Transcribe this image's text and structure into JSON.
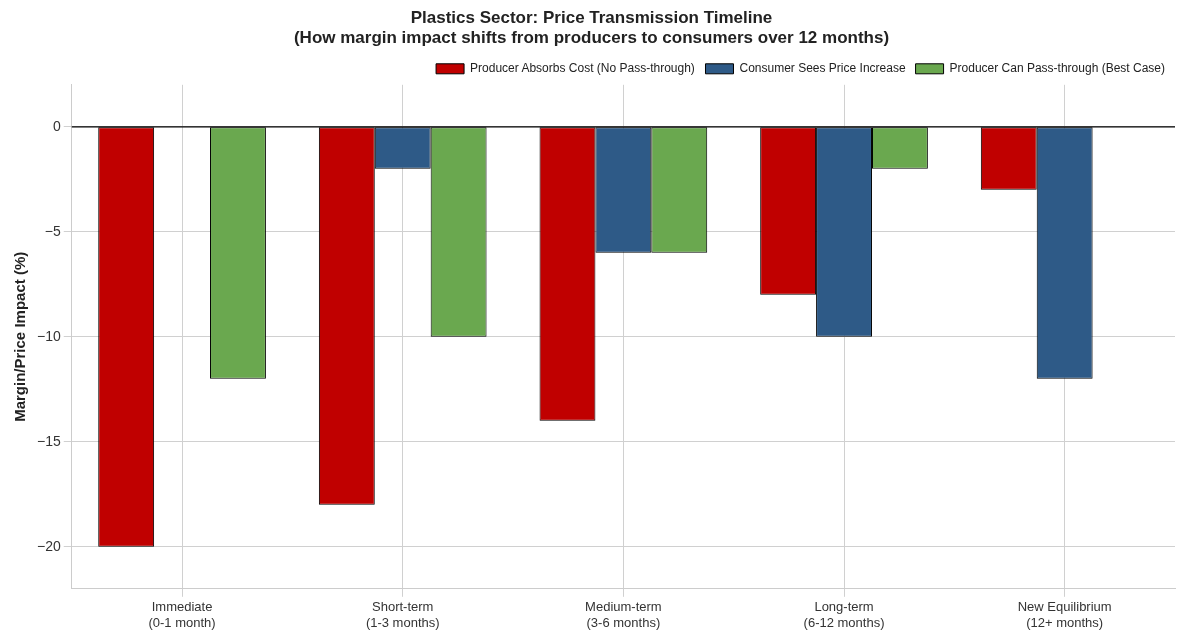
{
  "chart_data": {
    "type": "bar",
    "title": "Plastics Sector: Price Transmission Timeline\n(How margin impact shifts from producers to consumers over 12 months)",
    "ylabel": "Margin/Price Impact (%)",
    "categories": [
      "Immediate\n(0-1 month)",
      "Short-term\n(1-3 months)",
      "Medium-term\n(3-6 months)",
      "Long-term\n(6-12 months)",
      "New Equilibrium\n(12+ months)"
    ],
    "series": [
      {
        "name": "Producer Absorbs Cost (No Pass-through)",
        "color": "#c00000",
        "values": [
          -20,
          -18,
          -14,
          -8,
          -3
        ]
      },
      {
        "name": "Consumer Sees Price Increase",
        "color": "#2e5a87",
        "values": [
          0,
          -2,
          -6,
          -10,
          -12
        ]
      },
      {
        "name": "Producer Can Pass-through (Best Case)",
        "color": "#6aa84f",
        "values": [
          -12,
          -10,
          -6,
          -2,
          0
        ]
      }
    ],
    "ylim": [
      -22,
      2
    ],
    "yticks": [
      -20,
      -15,
      -10,
      -5,
      0
    ],
    "grid": true,
    "legend": "top right",
    "ref_lines": [
      {
        "axis": "y",
        "value": 0,
        "color": "#000000"
      }
    ]
  }
}
